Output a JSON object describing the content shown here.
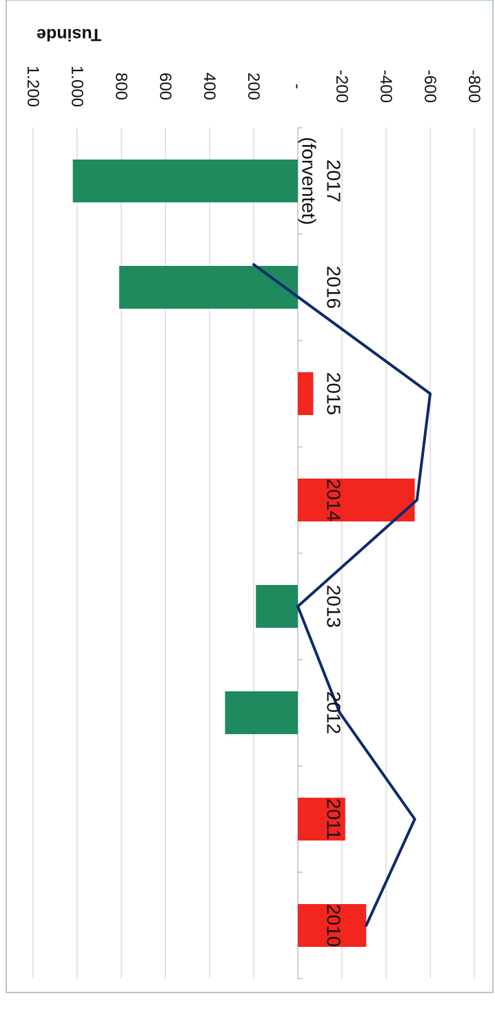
{
  "chart_data": {
    "type": "bar",
    "orientation": "rotated 90 degrees clockwise (categories run down the page, values increase to the left)",
    "title": "",
    "ylabel": "Tusinde",
    "xlabel": "",
    "ylim": [
      -800,
      1200
    ],
    "yticks": [
      1200,
      1000,
      800,
      600,
      400,
      200,
      0,
      -200,
      -400,
      -600,
      -800
    ],
    "ytick_labels": [
      "1.200",
      "1.000",
      "800",
      "600",
      "400",
      "200",
      "-",
      "-200",
      "-400",
      "-600",
      "-800"
    ],
    "categories": [
      [
        "2017",
        "(forventet)"
      ],
      [
        "2016"
      ],
      [
        "2015"
      ],
      [
        "2014"
      ],
      [
        "2013"
      ],
      [
        "2012"
      ],
      [
        "2011"
      ],
      [
        "2010"
      ]
    ],
    "grid": true,
    "series": [
      {
        "kind": "bar",
        "values": [
          1020,
          810,
          -70,
          -530,
          190,
          330,
          -215,
          -310
        ],
        "colors": [
          "#1e8a5e",
          "#1e8a5e",
          "#f2261f",
          "#f2261f",
          "#1e8a5e",
          "#1e8a5e",
          "#f2261f",
          "#f2261f"
        ]
      },
      {
        "kind": "line",
        "values": [
          null,
          200,
          -600,
          -540,
          0,
          -190,
          -530,
          -310
        ],
        "color": "#0d2a6b"
      }
    ]
  }
}
